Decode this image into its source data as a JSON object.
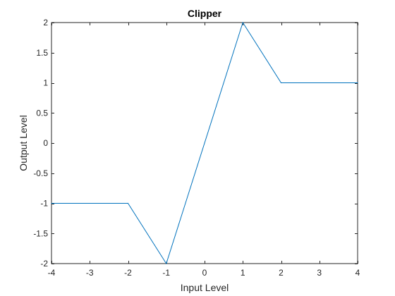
{
  "chart_data": {
    "type": "line",
    "title": "Clipper",
    "xlabel": "Input Level",
    "ylabel": "Output Level",
    "xlim": [
      -4,
      4
    ],
    "ylim": [
      -2,
      2
    ],
    "xticks": [
      -4,
      -3,
      -2,
      -1,
      0,
      1,
      2,
      3,
      4
    ],
    "yticks": [
      -2,
      -1.5,
      -1,
      -0.5,
      0,
      0.5,
      1,
      1.5,
      2
    ],
    "xtick_labels": [
      "-4",
      "-3",
      "-2",
      "-1",
      "0",
      "1",
      "2",
      "3",
      "4"
    ],
    "ytick_labels": [
      "-2",
      "-1.5",
      "-1",
      "-0.5",
      "0",
      "0.5",
      "1",
      "1.5",
      "2"
    ],
    "grid": false,
    "series": [
      {
        "x": [
          -4,
          -2,
          -1,
          1,
          2,
          4
        ],
        "y": [
          -1,
          -1,
          -2,
          2,
          1,
          1
        ],
        "color": "#0072bd"
      }
    ]
  }
}
